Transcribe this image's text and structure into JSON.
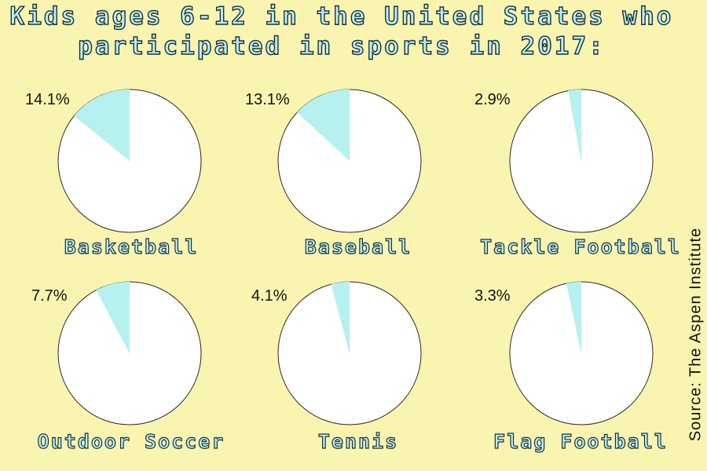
{
  "title_line1": "Kids ages 6-12 in the United States who",
  "title_line2": "participated in sports in 2017:",
  "source": "Source: The Aspen Institute",
  "colors": {
    "background": "#f9f5b0",
    "slice": "#b6f1f0",
    "pie": "#ffffff"
  },
  "chart_data": [
    {
      "type": "pie",
      "label": "Basketball",
      "value": 14.1,
      "value_label": "14.1%"
    },
    {
      "type": "pie",
      "label": "Baseball",
      "value": 13.1,
      "value_label": "13.1%"
    },
    {
      "type": "pie",
      "label": "Tackle Football",
      "value": 2.9,
      "value_label": "2.9%"
    },
    {
      "type": "pie",
      "label": "Outdoor Soccer",
      "value": 7.7,
      "value_label": "7.7%"
    },
    {
      "type": "pie",
      "label": "Tennis",
      "value": 4.1,
      "value_label": "4.1%"
    },
    {
      "type": "pie",
      "label": "Flag Football",
      "value": 3.3,
      "value_label": "3.3%"
    }
  ]
}
